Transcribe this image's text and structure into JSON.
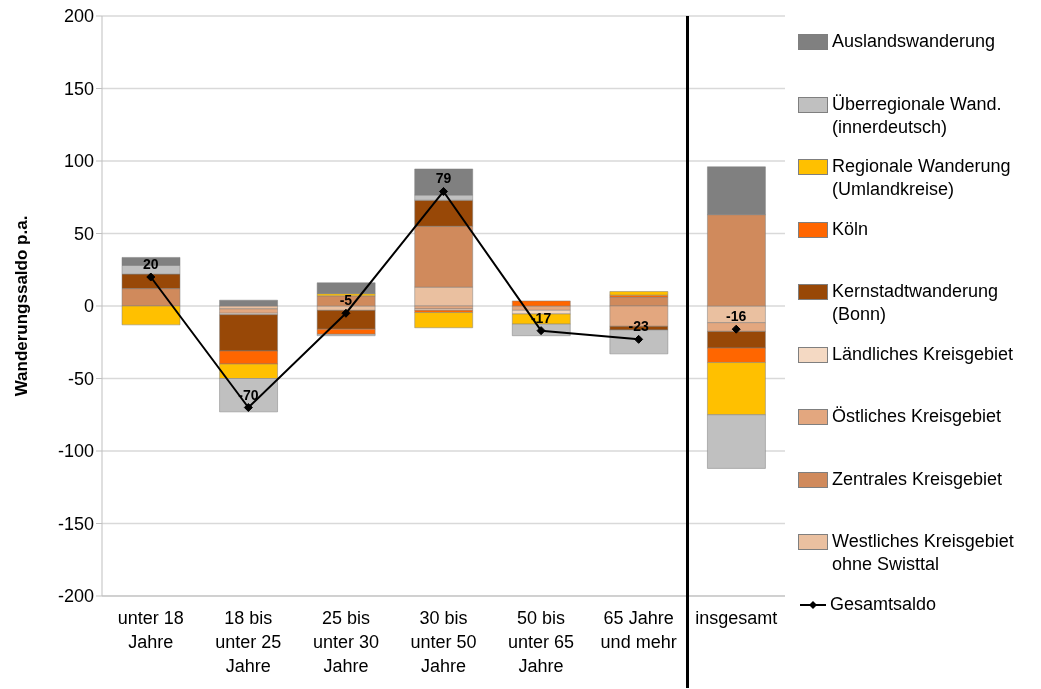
{
  "chart_data": {
    "type": "bar",
    "stacked": true,
    "ylabel": "Wanderungssaldo p.a.",
    "categories": [
      "unter 18 Jahre",
      "18 bis unter 25 Jahre",
      "25 bis unter 30 Jahre",
      "30 bis unter 50 Jahre",
      "50 bis unter 65 Jahre",
      "65 Jahre und mehr",
      "insgesamt"
    ],
    "ylim": [
      -200,
      200
    ],
    "yticks": [
      -200,
      -150,
      -100,
      -50,
      0,
      50,
      100,
      150,
      200
    ],
    "grid": "y",
    "legend": "right",
    "series": [
      {
        "name": "Westliches Kreisgebiet ohne Swisttal",
        "color": "#eac0a0",
        "values": [
          0,
          -2,
          -3,
          13,
          0,
          0,
          -11.5
        ]
      },
      {
        "name": "Zentrales Kreisgebiet",
        "color": "#d08a5c",
        "values": [
          12,
          0,
          7,
          42,
          0,
          6,
          63
        ]
      },
      {
        "name": "Östliches Kreisgebiet",
        "color": "#e3a77f",
        "values": [
          0,
          -3,
          0,
          -2,
          -3,
          -14,
          -6
        ]
      },
      {
        "name": "Ländliches Kreisgebiet",
        "color": "#f4d9c3",
        "values": [
          0,
          -1,
          0,
          -1,
          -2.5,
          0,
          0
        ]
      },
      {
        "name": "Kernstadtwanderung (Bonn)",
        "color": "#984807",
        "values": [
          10,
          -25,
          -13,
          18,
          0,
          -2.5,
          -11.5
        ]
      },
      {
        "name": "Köln",
        "color": "#ff6600",
        "values": [
          0,
          -9,
          -3.5,
          -1.5,
          3.5,
          1.5,
          -10
        ]
      },
      {
        "name": "Regionale Wanderung (Umlandkreise)",
        "color": "#ffc000",
        "values": [
          -13,
          -10,
          1.5,
          -10.5,
          -7,
          2.5,
          -36
        ]
      },
      {
        "name": "Überregionale Wand. (innerdeutsch)",
        "color": "#c0c0c0",
        "values": [
          6,
          -23,
          -1,
          3.5,
          -8,
          -16.5,
          -37
        ]
      },
      {
        "name": "Auslandswanderung",
        "color": "#808080",
        "values": [
          5.5,
          4,
          7.5,
          18,
          0,
          0,
          33
        ]
      },
      {
        "name": "Gesamtsaldo",
        "type": "line",
        "color": "#000000",
        "marker": "diamond",
        "values": [
          20,
          -70,
          -5,
          79,
          -17,
          -23,
          null
        ],
        "value_labels": [
          "20",
          "-70",
          "-5",
          "79",
          "-17",
          "-23",
          null
        ]
      },
      {
        "type": "line",
        "color": "#000000",
        "marker": "diamond",
        "values": [
          null,
          null,
          null,
          null,
          null,
          null,
          -16
        ],
        "value_labels": [
          null,
          null,
          null,
          null,
          null,
          null,
          "-16"
        ]
      }
    ]
  }
}
